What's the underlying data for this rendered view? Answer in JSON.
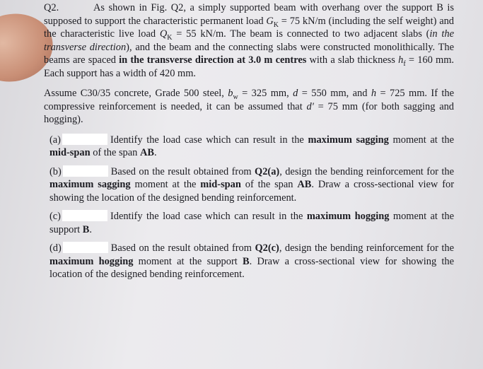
{
  "question": "Q2.",
  "paragraphs": [
    [
      "As shown in Fig. Q2, a simply supported beam with overhang over the support B is supposed to support the characteristic permanent load ",
      "G",
      "K",
      " = 75 kN/m (including the self weight) and the characteristic live load ",
      "Q",
      "K",
      " = 55 kN/m. The beam is connected to two adjacent slabs (",
      "in the transverse direction",
      "), and the beam and the connecting slabs were constructed monolithically. The beams are spaced ",
      "in the transverse direction at 3.0 m centres",
      " with a slab thickness ",
      "h",
      "f",
      " = 160 mm. Each support has a width of 420 mm."
    ],
    [
      "Assume C30/35 concrete, Grade 500 steel, ",
      "b",
      "w",
      " = 325 mm, ",
      "d",
      " = 550 mm, and ",
      "h",
      " = 725 mm. If the compressive reinforcement is needed, it can be assumed that ",
      "d'",
      " = 75 mm (for both sagging and hogging)."
    ]
  ],
  "parts": [
    {
      "label": "(a)",
      "text": [
        "Identify the load case which can result in the ",
        "maximum sagging",
        " moment at the ",
        "mid-span",
        " of the span ",
        "AB",
        "."
      ]
    },
    {
      "label": "(b)",
      "text": [
        "Based on the result obtained from ",
        "Q2(a)",
        ", design the bending reinforcement for the ",
        "maximum sagging",
        " moment at the ",
        "mid-span",
        " of the span ",
        "AB",
        ". Draw a cross-sectional view for showing the location of the designed bending reinforcement."
      ]
    },
    {
      "label": "(c)",
      "text": [
        "Identify the load case which can result in the ",
        "maximum hogging",
        " moment at the support ",
        "B",
        "."
      ]
    },
    {
      "label": "(d)",
      "text": [
        "Based on the result obtained from ",
        "Q2(c)",
        ", design the bending reinforcement for the ",
        "maximum hogging",
        " moment at the support ",
        "B",
        ". Draw a cross-sectional view for showing the location of the designed bending reinforcement."
      ]
    }
  ]
}
